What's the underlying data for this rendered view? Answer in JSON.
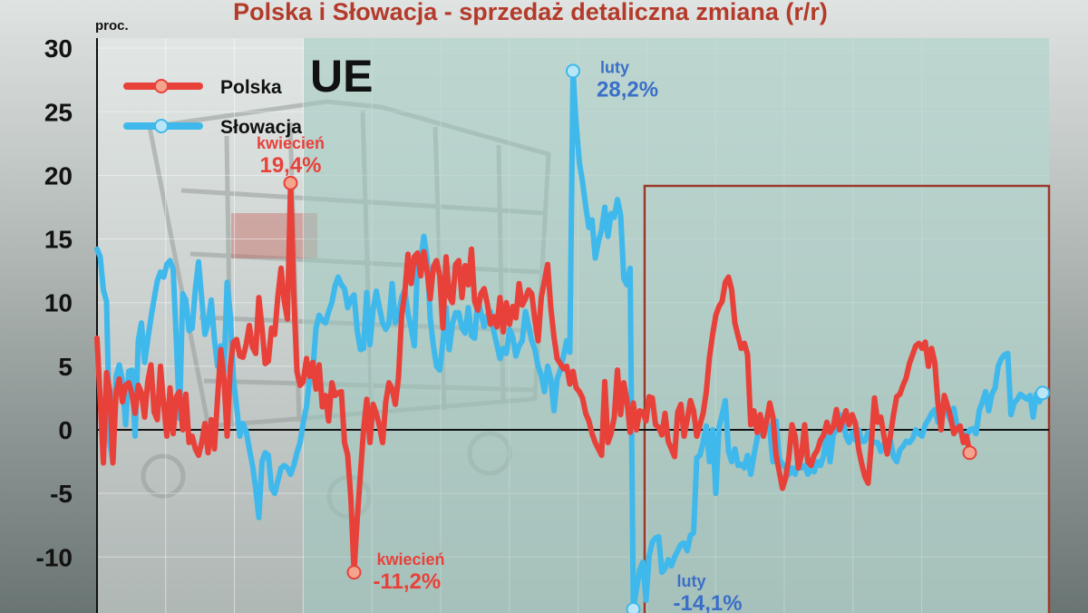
{
  "chart_data": {
    "type": "line",
    "title": "Polska i Słowacja - sprzedaż detaliczna zmiana (r/r)",
    "ylabel": "proc.",
    "ylim": [
      -14.5,
      30
    ],
    "yticks": [
      30,
      25,
      20,
      15,
      10,
      5,
      0,
      -5,
      -10
    ],
    "grid": true,
    "legend_position": "top-left",
    "region_label": "UE",
    "colors": {
      "polska": "#e8413a",
      "slowacja": "#3fb8ec",
      "title": "#b43a2a",
      "ue_band": "#9fc9bf",
      "box": "#9b3a2a"
    },
    "series": [
      {
        "name": "Polska",
        "values": [
          7.2,
          2.4,
          -2.6,
          4.5,
          3.1,
          -2.6,
          2.9,
          4.0,
          2.2,
          3.5,
          3.7,
          2.8,
          1.3,
          3.5,
          2.9,
          1.0,
          3.8,
          5.1,
          1.4,
          0.8,
          5.0,
          2.0,
          -0.5,
          3.3,
          -0.3,
          2.6,
          3.0,
          0.0,
          2.8,
          -1.0,
          -0.5,
          -1.5,
          -2.0,
          -1.0,
          0.5,
          -1.8,
          0.8,
          -1.5,
          2.5,
          6.3,
          4.0,
          -0.5,
          5.0,
          6.9,
          7.1,
          5.8,
          5.7,
          6.7,
          8.2,
          6.5,
          6.0,
          10.4,
          8.0,
          5.2,
          5.4,
          8.0,
          7.5,
          10.5,
          12.7,
          10.1,
          8.7,
          19.4,
          10.7,
          4.6,
          3.5,
          3.8,
          5.6,
          4.2,
          5.3,
          3.2,
          5.1,
          1.8,
          2.7,
          0.7,
          3.7,
          2.7,
          2.9,
          3.0,
          -1.0,
          -2.0,
          -5.4,
          -11.2,
          -7.0,
          -3.5,
          0.0,
          2.4,
          -1.0,
          2.0,
          1.3,
          0.3,
          -1.0,
          2.2,
          3.7,
          3.2,
          2.0,
          4.1,
          9.0,
          10.8,
          13.8,
          11.5,
          13.6,
          13.9,
          12.1,
          14.0,
          12.5,
          10.3,
          12.8,
          13.3,
          12.1,
          8.0,
          13.6,
          10.5,
          10.0,
          13.0,
          13.3,
          10.4,
          12.9,
          11.4,
          14.2,
          10.1,
          9.4,
          10.7,
          11.1,
          9.9,
          8.3,
          8.9,
          8.1,
          10.4,
          7.7,
          10.0,
          8.3,
          9.7,
          8.8,
          11.5,
          9.8,
          10.3,
          11.0,
          10.7,
          8.6,
          7.0,
          10.4,
          11.7,
          13.0,
          9.6,
          7.3,
          5.6,
          5.2,
          4.8,
          5.0,
          3.6,
          4.6,
          3.3,
          3.0,
          2.5,
          1.3,
          0.7,
          -0.3,
          -1.0,
          -1.5,
          -2.0,
          3.8,
          -1.0,
          -0.3,
          1.0,
          4.7,
          1.2,
          3.7,
          2.3,
          -0.2,
          2.1,
          0.0,
          1.5,
          1.4,
          0.7,
          2.6,
          2.5,
          0.4,
          0.2,
          -0.4,
          1.3,
          -0.9,
          -1.5,
          -2.1,
          1.4,
          2.0,
          -0.5,
          0.8,
          2.3,
          1.5,
          -0.5,
          0.4,
          1.3,
          3.0,
          5.7,
          7.5,
          9.0,
          9.7,
          10.1,
          11.6,
          12.0,
          11.0,
          8.4,
          7.4,
          6.4,
          6.8,
          5.9,
          0.4,
          1.5,
          -0.2,
          1.2,
          -0.5,
          0.7,
          2.1,
          1.0,
          -2.0,
          -3.3,
          -4.6,
          -3.8,
          -2.2,
          0.4,
          -0.5,
          -3.0,
          -2.0,
          0.4,
          -2.5,
          -2.8,
          -2.0,
          -1.6,
          -0.8,
          -0.4,
          0.6,
          -0.2,
          0.2,
          1.6,
          0.0,
          0.7,
          1.5,
          0.4,
          1.2,
          0.5,
          -1.5,
          -2.7,
          -3.7,
          -4.2,
          -1.1,
          2.5,
          0.6,
          1.0,
          -0.5,
          -1.9,
          -0.5,
          1.2,
          2.6,
          2.8,
          3.5,
          4.1,
          5.2,
          5.9,
          6.6,
          6.8,
          6.4,
          6.9,
          5.0,
          6.4,
          5.3,
          2.1,
          0.0,
          2.7,
          1.9,
          1.0,
          -0.3,
          0.1,
          0.3,
          -1.0,
          -0.5,
          -1.8
        ]
      },
      {
        "name": "Słowacja",
        "values": [
          14.2,
          13.6,
          11.0,
          10.1,
          -1.0,
          -2.5,
          4.2,
          5.1,
          3.9,
          0.4,
          4.6,
          4.7,
          -0.5,
          7.0,
          8.4,
          5.3,
          7.1,
          8.8,
          10.3,
          11.7,
          12.4,
          12.0,
          13.0,
          13.3,
          12.6,
          7.0,
          0.9,
          10.7,
          10.2,
          7.8,
          8.0,
          11.1,
          13.2,
          10.3,
          7.5,
          8.4,
          10.2,
          7.1,
          5.0,
          6.6,
          4.6,
          11.6,
          9.0,
          4.0,
          1.8,
          -0.5,
          0.5,
          -0.1,
          -1.5,
          -2.8,
          -4.6,
          -6.9,
          -2.5,
          -1.8,
          -2.0,
          -4.6,
          -5.0,
          -4.0,
          -3.0,
          -2.8,
          -3.0,
          -3.5,
          -2.8,
          -1.8,
          -1.0,
          0.6,
          1.8,
          4.0,
          4.6,
          8.0,
          9.0,
          8.6,
          8.4,
          9.3,
          10.0,
          11.3,
          12.0,
          11.4,
          11.1,
          9.6,
          10.3,
          10.6,
          7.8,
          6.3,
          6.4,
          10.8,
          6.7,
          9.4,
          10.9,
          9.6,
          8.4,
          7.9,
          8.4,
          11.5,
          8.4,
          9.0,
          10.4,
          11.0,
          9.1,
          8.0,
          6.6,
          13.0,
          13.3,
          15.2,
          13.5,
          8.8,
          6.6,
          5.0,
          4.7,
          6.9,
          9.6,
          6.3,
          8.3,
          9.2,
          9.2,
          8.0,
          7.6,
          9.6,
          7.4,
          7.2,
          10.2,
          9.2,
          8.1,
          9.0,
          9.3,
          7.8,
          6.7,
          5.6,
          6.4,
          6.0,
          7.9,
          7.3,
          5.8,
          6.6,
          7.0,
          9.3,
          8.2,
          7.0,
          6.3,
          5.0,
          4.3,
          3.0,
          5.0,
          4.0,
          1.5,
          4.0,
          4.7,
          5.8,
          7.0,
          6.1,
          28.2,
          24.0,
          21.0,
          19.5,
          17.6,
          15.9,
          16.5,
          13.5,
          14.8,
          15.7,
          17.5,
          15.2,
          17.0,
          16.7,
          18.1,
          16.9,
          11.9,
          11.4,
          12.7,
          -14.1,
          -12.5,
          -11.0,
          -10.4,
          -13.4,
          -9.9,
          -8.8,
          -8.5,
          -8.4,
          -11.2,
          -10.9,
          -10.2,
          -10.7,
          -10.0,
          -9.5,
          -9.0,
          -8.9,
          -9.5,
          -8.3,
          -8.1,
          -2.2,
          -2.0,
          -1.0,
          0.3,
          -2.5,
          0.0,
          -5.0,
          0.2,
          1.2,
          2.3,
          -1.7,
          -2.5,
          -1.5,
          -2.8,
          -2.7,
          -3.0,
          -2.0,
          -3.5,
          -2.0,
          -0.7,
          0.4,
          0.8,
          0.7,
          0.0,
          -2.5,
          0.7,
          -2.3,
          -2.7,
          -3.0,
          -3.5,
          -3.0,
          -3.5,
          -2.5,
          -3.0,
          -2.8,
          -3.5,
          -3.0,
          -3.3,
          -2.5,
          -2.8,
          -2.0,
          -0.1,
          -2.5,
          -0.4,
          0.0,
          1.2,
          0.8,
          -0.5,
          -1.0,
          -0.2,
          -0.8,
          0.0,
          -0.9,
          -0.9,
          -0.2,
          -0.8,
          -1.0,
          -1.0,
          -1.7,
          -1.1,
          -1.2,
          -0.8,
          -2.1,
          -2.5,
          -1.6,
          -1.3,
          -0.9,
          -1.0,
          -0.7,
          0.0,
          -0.3,
          -0.5,
          0.4,
          0.8,
          1.3,
          1.6,
          0.6,
          1.1,
          1.4,
          1.3,
          0.7,
          1.7,
          0.2,
          -0.1,
          -0.3,
          -0.5,
          0.0,
          0.1,
          -0.3,
          1.5,
          2.2,
          3.0,
          1.5,
          2.8,
          3.3,
          5.0,
          5.6,
          5.9,
          6.0,
          1.2,
          2.1,
          2.4,
          2.8,
          2.6,
          2.4,
          2.7,
          1.0,
          2.8,
          2.2,
          2.9
        ]
      }
    ],
    "annotations": [
      {
        "series": "Polska",
        "label": "kwiecień",
        "value_label": "19,4%"
      },
      {
        "series": "Polska",
        "label": "kwiecień",
        "value_label": "-11,2%"
      },
      {
        "series": "Słowacja",
        "label": "luty",
        "value_label": "28,2%"
      },
      {
        "series": "Słowacja",
        "label": "luty",
        "value_label": "-14,1%"
      }
    ]
  }
}
